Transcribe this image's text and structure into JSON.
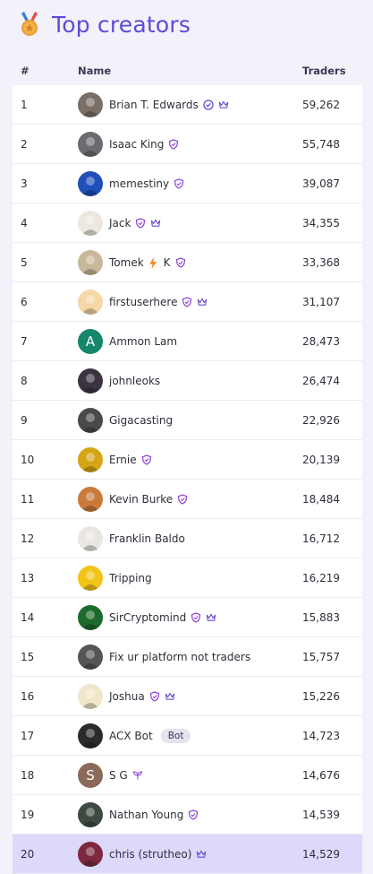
{
  "header": {
    "title": "Top creators",
    "icon": "medal-icon"
  },
  "columns": {
    "rank": "#",
    "name": "Name",
    "traders": "Traders"
  },
  "colors": {
    "accent": "#5b4bd6",
    "badge_purple": "#7c3aed",
    "selected_row": "#dcd9fb"
  },
  "rows": [
    {
      "rank": "1",
      "name": "Brian T. Edwards",
      "traders": "59,262",
      "badges": [
        "verified",
        "crown"
      ],
      "avatar": "#7a6f66"
    },
    {
      "rank": "2",
      "name": "Isaac King",
      "traders": "55,748",
      "badges": [
        "shield"
      ],
      "avatar": "#6b6b70"
    },
    {
      "rank": "3",
      "name": "memestiny",
      "traders": "39,087",
      "badges": [
        "shield"
      ],
      "avatar": "#1f4fb8"
    },
    {
      "rank": "4",
      "name": "Jack",
      "traders": "34,355",
      "badges": [
        "shield",
        "crown"
      ],
      "avatar": "#ece8df"
    },
    {
      "rank": "5",
      "name": "Tomek",
      "name_suffix": "K",
      "traders": "33,368",
      "badges": [
        "bolt",
        "shield"
      ],
      "avatar": "#c8b89a"
    },
    {
      "rank": "6",
      "name": "firstuserhere",
      "traders": "31,107",
      "badges": [
        "shield",
        "crown"
      ],
      "avatar": "#f6d7a8"
    },
    {
      "rank": "7",
      "name": "Ammon Lam",
      "traders": "28,473",
      "badges": [],
      "avatar": "#13866b",
      "initial": "A"
    },
    {
      "rank": "8",
      "name": "johnleoks",
      "traders": "26,474",
      "badges": [],
      "avatar": "#3b3440"
    },
    {
      "rank": "9",
      "name": "Gigacasting",
      "traders": "22,926",
      "badges": [],
      "avatar": "#4a4a4a"
    },
    {
      "rank": "10",
      "name": "Ernie",
      "traders": "20,139",
      "badges": [
        "shield"
      ],
      "avatar": "#d4a616"
    },
    {
      "rank": "11",
      "name": "Kevin Burke",
      "traders": "18,484",
      "badges": [
        "shield"
      ],
      "avatar": "#c97a3a"
    },
    {
      "rank": "12",
      "name": "Franklin Baldo",
      "traders": "16,712",
      "badges": [],
      "avatar": "#eae7e2"
    },
    {
      "rank": "13",
      "name": "Tripping",
      "traders": "16,219",
      "badges": [],
      "avatar": "#f2c318"
    },
    {
      "rank": "14",
      "name": "SirCryptomind",
      "traders": "15,883",
      "badges": [
        "shield",
        "crown"
      ],
      "avatar": "#1d6b2c"
    },
    {
      "rank": "15",
      "name": "Fix ur platform not traders",
      "traders": "15,757",
      "badges": [],
      "avatar": "#555"
    },
    {
      "rank": "16",
      "name": "Joshua",
      "traders": "15,226",
      "badges": [
        "shield",
        "crown"
      ],
      "avatar": "#f1e6c9"
    },
    {
      "rank": "17",
      "name": "ACX Bot",
      "traders": "14,723",
      "badges": [],
      "bot": "Bot",
      "avatar": "#2b2b2b"
    },
    {
      "rank": "18",
      "name": "S G",
      "traders": "14,676",
      "badges": [
        "sprout"
      ],
      "avatar": "#8b6a5a",
      "initial": "S"
    },
    {
      "rank": "19",
      "name": "Nathan Young",
      "traders": "14,539",
      "badges": [
        "shield"
      ],
      "avatar": "#3d4a42"
    },
    {
      "rank": "20",
      "name": "chris (strutheo)",
      "traders": "14,529",
      "badges": [
        "crown"
      ],
      "avatar": "#7d2840",
      "selected": true
    }
  ]
}
